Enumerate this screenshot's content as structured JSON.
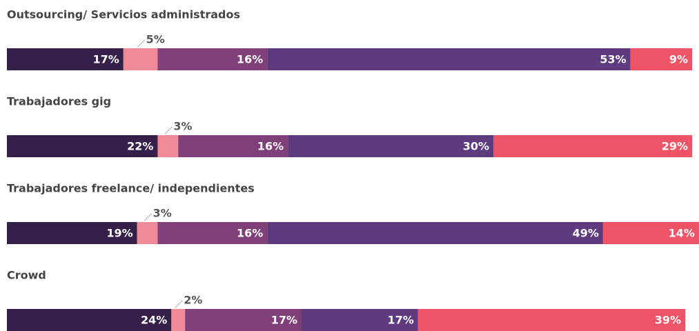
{
  "chart_data": {
    "type": "bar",
    "orientation": "horizontal",
    "stacked": true,
    "categories": [
      "Outsourcing/ Servicios administrados",
      "Trabajadores gig",
      "Trabajadores freelance/ independientes",
      "Crowd"
    ],
    "xlim": [
      0,
      100
    ],
    "series": [
      {
        "color": "#35204a",
        "values": [
          17,
          22,
          19,
          24
        ],
        "value_labels": [
          "17%",
          "22%",
          "19%",
          "24%"
        ]
      },
      {
        "color": "#f08a96",
        "values": [
          5,
          3,
          3,
          2
        ],
        "value_labels": [
          "5%",
          "3%",
          "3%",
          "2%"
        ]
      },
      {
        "color": "#7f3f78",
        "values": [
          16,
          16,
          16,
          17
        ],
        "value_labels": [
          "16%",
          "16%",
          "16%",
          "17%"
        ]
      },
      {
        "color": "#5e3a7e",
        "values": [
          53,
          30,
          49,
          17
        ],
        "value_labels": [
          "53%",
          "30%",
          "49%",
          "17%"
        ]
      },
      {
        "color": "#ef5366",
        "values": [
          9,
          29,
          14,
          39
        ],
        "value_labels": [
          "9%",
          "29%",
          "14%",
          "39%"
        ]
      }
    ]
  }
}
